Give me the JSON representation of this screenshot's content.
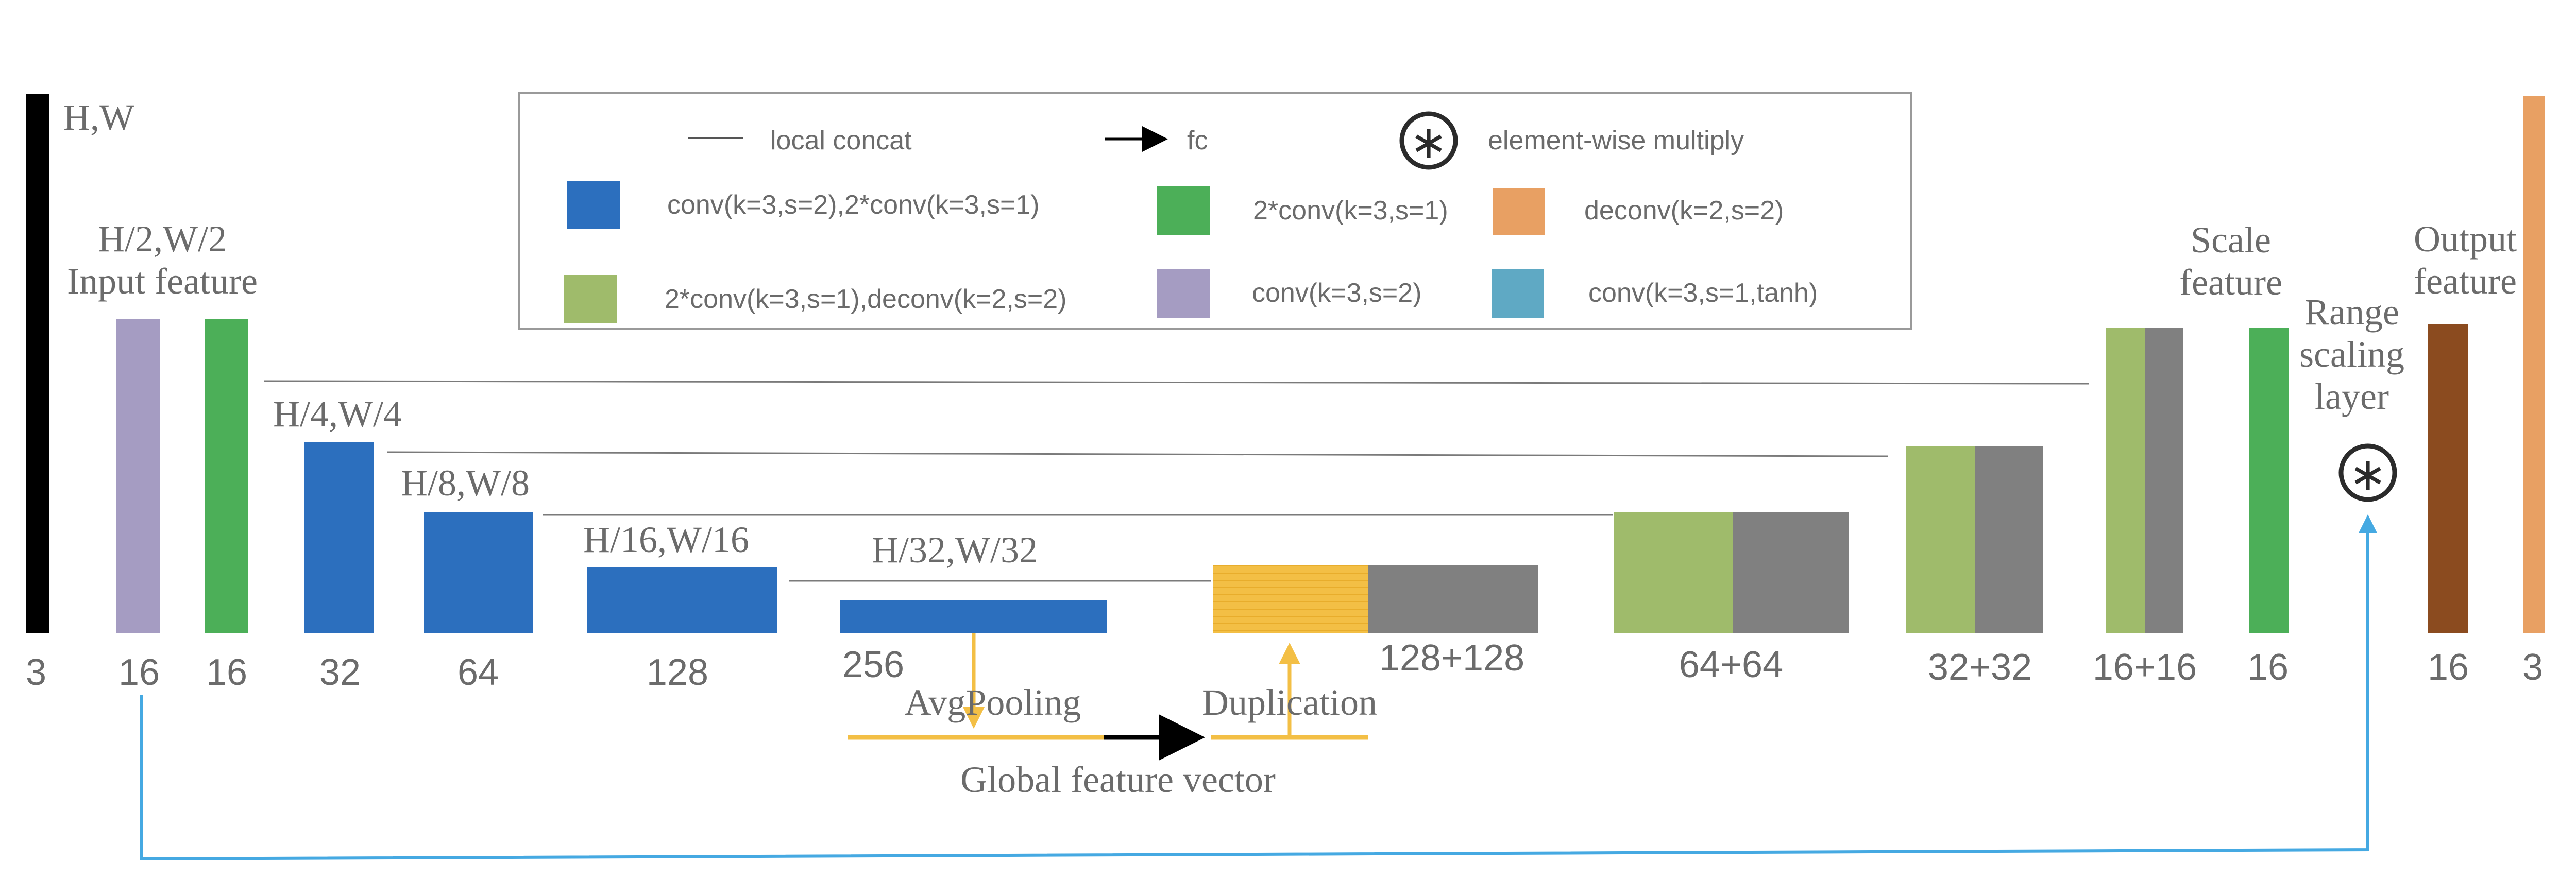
{
  "legend": {
    "local_concat": "local concat",
    "fc": "fc",
    "multiply": "element-wise multiply",
    "blue": "conv(k=3,s=2),2*conv(k=3,s=1)",
    "green": "2*conv(k=3,s=1)",
    "orange": "deconv(k=2,s=2)",
    "lightgreen": "2*conv(k=3,s=1),deconv(k=2,s=2)",
    "purple": "conv(k=3,s=2)",
    "teal": "conv(k=3,s=1,tanh)"
  },
  "colors": {
    "blue": "#2c6fbe",
    "green": "#4caf58",
    "orange": "#e8a063",
    "lightgreen": "#9fbb6b",
    "purple": "#a59cc2",
    "teal": "#5fa9c4",
    "gray": "#808080",
    "yellow": "#f3bf45",
    "brown": "#8b4b1f",
    "black": "#000000",
    "skip_arrow": "#45a9e2"
  },
  "labels": {
    "hw": "H,W",
    "h2w2": "H/2,W/2",
    "input_feature": "Input feature",
    "h4w4": "H/4,W/4",
    "h8w8": "H/8,W/8",
    "h16w16": "H/16,W/16",
    "h32w32": "H/32,W/32",
    "scale_feature_1": "Scale",
    "scale_feature_2": "feature",
    "output_feature_1": "Output",
    "output_feature_2": "feature",
    "range_1": "Range",
    "range_2": "scaling",
    "range_3": "layer",
    "avgpooling": "AvgPooling",
    "duplication": "Duplication",
    "global_vector": "Global feature vector"
  },
  "channels": {
    "c1": "3",
    "c2": "16",
    "c3": "16",
    "c4": "32",
    "c5": "64",
    "c6": "128",
    "c7": "256",
    "c8": "128+128",
    "c9": "64+64",
    "c10": "32+32",
    "c11": "16+16",
    "c12": "16",
    "c13": "16",
    "c14": "3",
    "c15": "3"
  }
}
